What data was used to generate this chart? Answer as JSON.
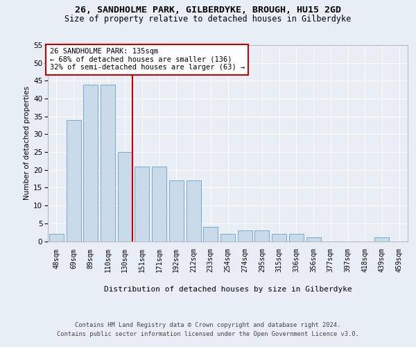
{
  "title1": "26, SANDHOLME PARK, GILBERDYKE, BROUGH, HU15 2GD",
  "title2": "Size of property relative to detached houses in Gilberdyke",
  "xlabel": "Distribution of detached houses by size in Gilberdyke",
  "ylabel": "Number of detached properties",
  "categories": [
    "48sqm",
    "69sqm",
    "89sqm",
    "110sqm",
    "130sqm",
    "151sqm",
    "171sqm",
    "192sqm",
    "212sqm",
    "233sqm",
    "254sqm",
    "274sqm",
    "295sqm",
    "315sqm",
    "336sqm",
    "356sqm",
    "377sqm",
    "397sqm",
    "418sqm",
    "439sqm",
    "459sqm"
  ],
  "values": [
    2,
    34,
    44,
    44,
    25,
    21,
    21,
    17,
    17,
    4,
    2,
    3,
    3,
    2,
    2,
    1,
    0,
    0,
    0,
    1,
    0
  ],
  "bar_color": "#c9daea",
  "bar_edge_color": "#6a9fc0",
  "annotation_title": "26 SANDHOLME PARK: 135sqm",
  "annotation_line1": "← 68% of detached houses are smaller (136)",
  "annotation_line2": "32% of semi-detached houses are larger (63) →",
  "annotation_box_color": "#ffffff",
  "annotation_box_edge": "#cc0000",
  "vline_color": "#cc0000",
  "ylim": [
    0,
    55
  ],
  "yticks": [
    0,
    5,
    10,
    15,
    20,
    25,
    30,
    35,
    40,
    45,
    50,
    55
  ],
  "footnote1": "Contains HM Land Registry data © Crown copyright and database right 2024.",
  "footnote2": "Contains public sector information licensed under the Open Government Licence v3.0.",
  "bg_color": "#e8eef5",
  "plot_bg_color": "#e8eef5"
}
